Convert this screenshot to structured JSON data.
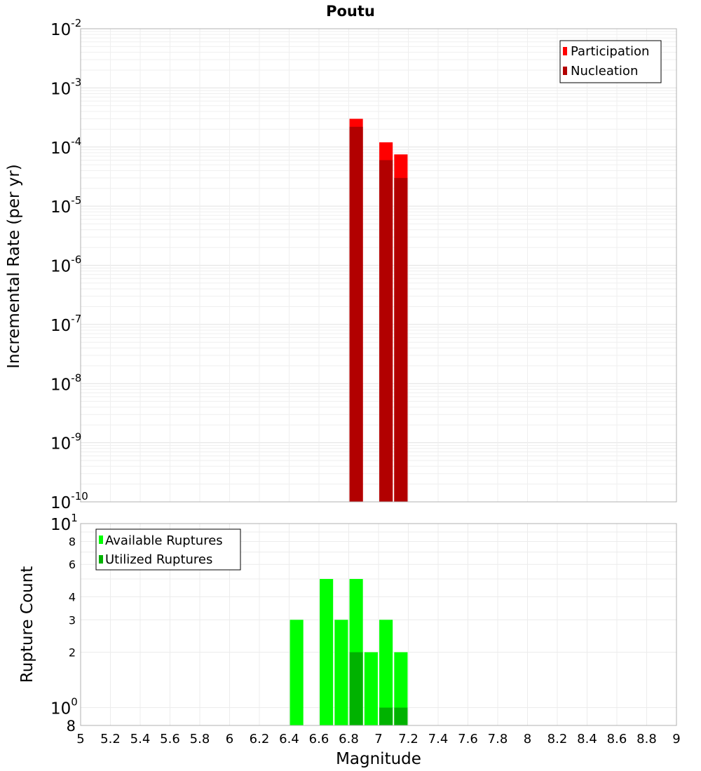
{
  "chart_data": [
    {
      "type": "bar",
      "title": "Poutu",
      "ylabel": "Incremental Rate (per yr)",
      "yscale": "log",
      "xlim": [
        5,
        9
      ],
      "ylim": [
        1e-10,
        0.01
      ],
      "ytick_exponents": [
        "-2",
        "-3",
        "-4",
        "-5",
        "-6",
        "-7",
        "-8",
        "-9",
        "-10"
      ],
      "ytick_base": "10",
      "bar_width": 0.09,
      "grid": true,
      "legend_position": "top-right",
      "series": [
        {
          "name": "Participation",
          "color": "#ff0000",
          "x": [
            6.85,
            7.05,
            7.15
          ],
          "values": [
            0.0003,
            0.00012,
            7.5e-05
          ]
        },
        {
          "name": "Nucleation",
          "color": "#b20000",
          "x": [
            6.85,
            7.05,
            7.15
          ],
          "values": [
            0.00022,
            6e-05,
            3e-05
          ]
        }
      ]
    },
    {
      "type": "bar",
      "xlabel": "Magnitude",
      "ylabel": "Rupture Count",
      "yscale": "log",
      "xlim": [
        5,
        9
      ],
      "ylim": [
        0.8,
        10
      ],
      "bar_width": 0.09,
      "grid": true,
      "legend_position": "top-left",
      "ytick_labels": [
        "8",
        "6",
        "4",
        "3",
        "2"
      ],
      "ytick_values": [
        8,
        6,
        4,
        3,
        2
      ],
      "ytick_major": [
        {
          "base": "10",
          "exp": "1",
          "value": 10
        },
        {
          "base": "10",
          "exp": "0",
          "value": 1
        }
      ],
      "ytick_bottom": "8",
      "xtick_labels": [
        "5",
        "5.2",
        "5.4",
        "5.6",
        "5.8",
        "6",
        "6.2",
        "6.4",
        "6.6",
        "6.8",
        "7",
        "7.2",
        "7.4",
        "7.6",
        "7.8",
        "8",
        "8.2",
        "8.4",
        "8.6",
        "8.8",
        "9"
      ],
      "series": [
        {
          "name": "Available Ruptures",
          "color": "#00ff00",
          "x": [
            6.45,
            6.65,
            6.75,
            6.85,
            6.95,
            7.05,
            7.15
          ],
          "values": [
            3,
            5,
            3,
            5,
            2,
            3,
            2
          ]
        },
        {
          "name": "Utilized Ruptures",
          "color": "#00b200",
          "x": [
            6.85,
            7.05,
            7.15
          ],
          "values": [
            2,
            1,
            1
          ]
        }
      ]
    }
  ]
}
